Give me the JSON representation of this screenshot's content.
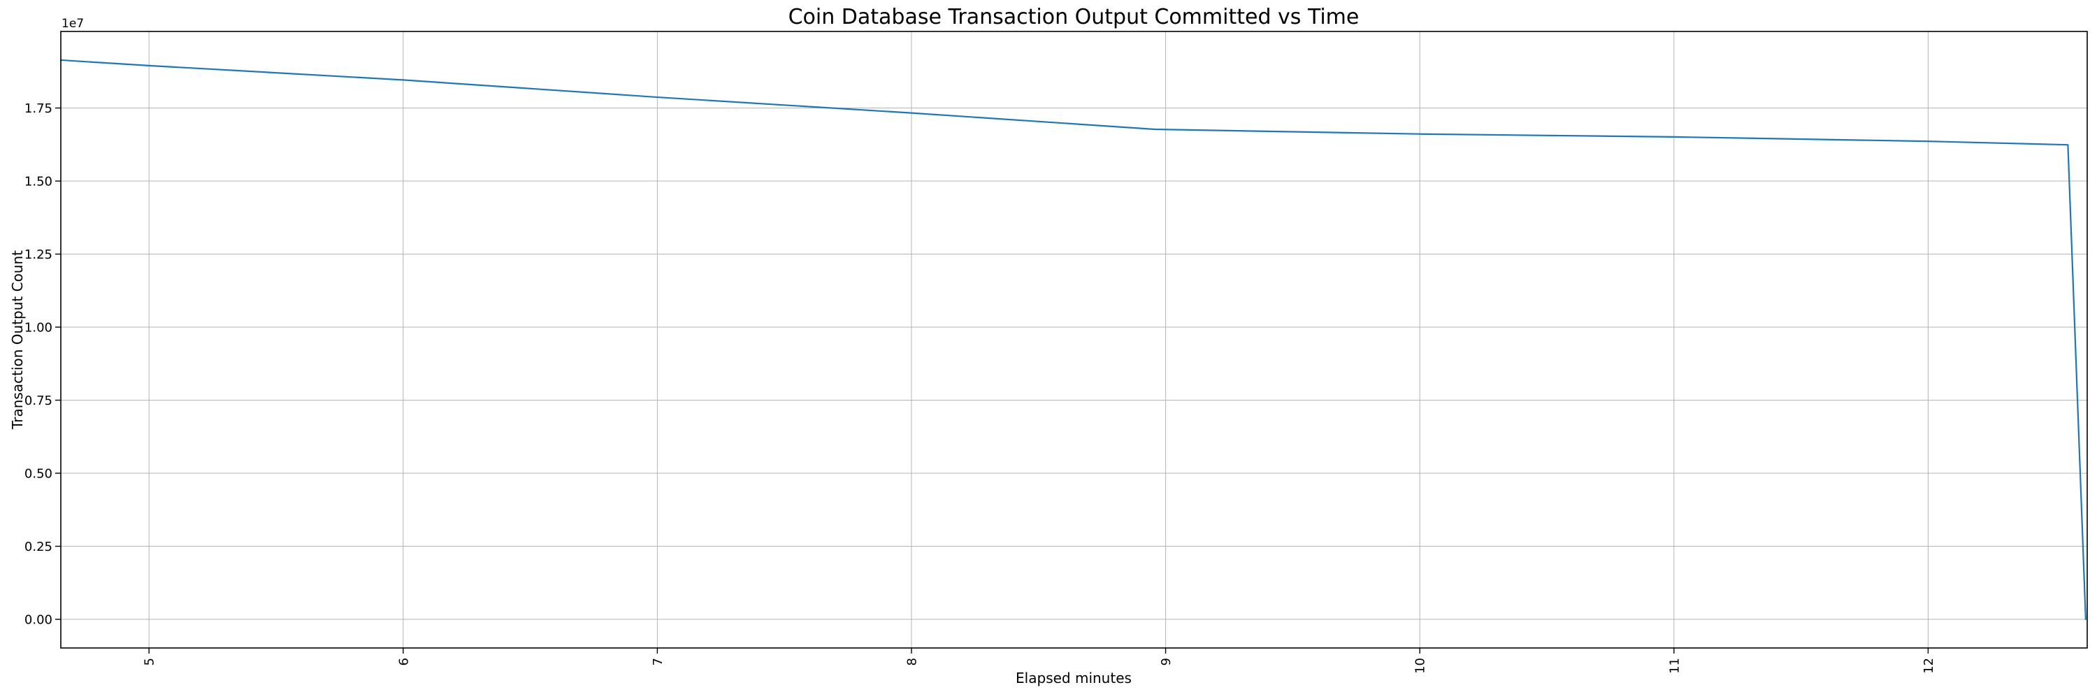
{
  "figure": {
    "background_color": "#ffffff"
  },
  "chart_data": {
    "type": "line",
    "title": "Coin Database Transaction Output Committed vs Time",
    "xlabel": "Elapsed minutes",
    "ylabel": "Transaction Output Count",
    "y_offset_label": "1e7",
    "legend": "none",
    "grid": "on",
    "grid_color": "#b4b4b4",
    "line_color": "#1f77b4",
    "spine_color": "#000000",
    "xlim": [
      4.653,
      12.626
    ],
    "ylim": [
      -981000,
      20120000
    ],
    "x_ticks": [
      5,
      6,
      7,
      8,
      9,
      10,
      11,
      12
    ],
    "x_tick_labels": [
      "5",
      "6",
      "7",
      "8",
      "9",
      "10",
      "11",
      "12"
    ],
    "x_tick_rotation_deg": 90,
    "y_ticks": [
      0,
      2500000,
      5000000,
      7500000,
      10000000,
      12500000,
      15000000,
      17500000
    ],
    "y_tick_labels": [
      "0.00",
      "0.25",
      "0.50",
      "0.75",
      "1.00",
      "1.25",
      "1.50",
      "1.75"
    ],
    "series": [
      {
        "name": "Transaction Output Count",
        "x": [
          4.653,
          5.0,
          6.0,
          7.0,
          8.0,
          8.96,
          10.0,
          11.0,
          12.0,
          12.55,
          12.62
        ],
        "y": [
          19140000,
          18950000,
          18460000,
          17870000,
          17330000,
          16770000,
          16610000,
          16510000,
          16360000,
          16240000,
          0
        ]
      }
    ]
  }
}
